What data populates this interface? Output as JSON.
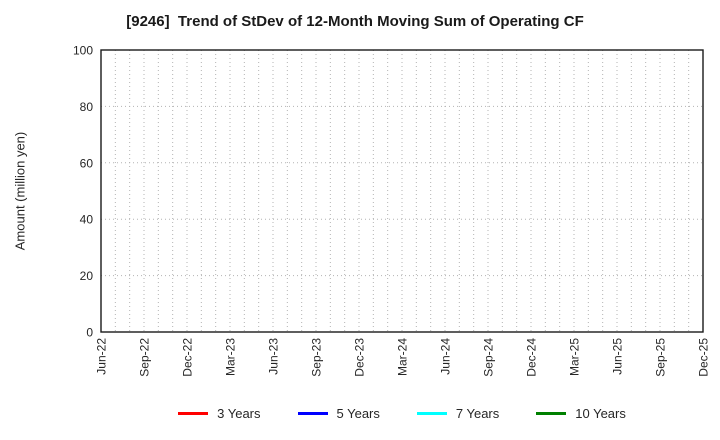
{
  "title": "[9246]  Trend of StDev of 12-Month Moving Sum of Operating CF",
  "chart_data": {
    "type": "line",
    "title": "[9246]  Trend of StDev of 12-Month Moving Sum of Operating CF",
    "xlabel": "",
    "ylabel": "Amount (million yen)",
    "ylim": [
      0,
      100
    ],
    "yticks": [
      0,
      20,
      40,
      60,
      80,
      100
    ],
    "x_tick_labels": [
      "Jun-22",
      "Sep-22",
      "Dec-22",
      "Mar-23",
      "Jun-23",
      "Sep-23",
      "Dec-23",
      "Mar-24",
      "Jun-24",
      "Sep-24",
      "Dec-24",
      "Mar-25",
      "Jun-25",
      "Sep-25",
      "Dec-25"
    ],
    "months_per_major_tick": 3,
    "minor_vertical_gridlines": "monthly",
    "grid": true,
    "legend_position": "bottom",
    "plot_empty": true,
    "series": [
      {
        "name": "3 Years",
        "color": "#ff0000",
        "values": []
      },
      {
        "name": "5 Years",
        "color": "#0000ff",
        "values": []
      },
      {
        "name": "7 Years",
        "color": "#00ffff",
        "values": []
      },
      {
        "name": "10 Years",
        "color": "#008000",
        "values": []
      }
    ],
    "colors": {
      "axis": "#1a1a1a",
      "grid": "#b3b3b3",
      "tick_text": "#262626"
    }
  }
}
